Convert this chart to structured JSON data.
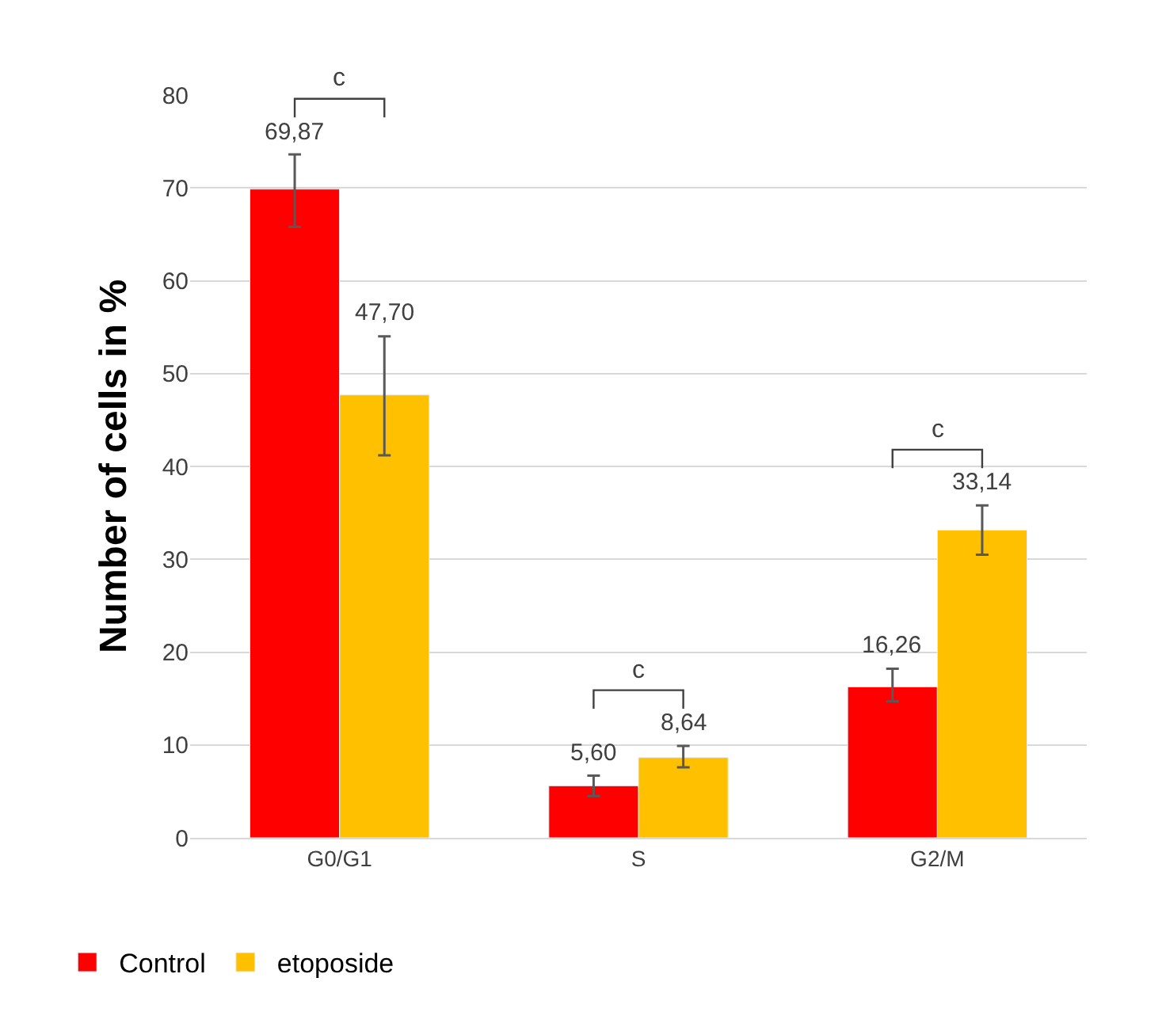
{
  "chart_data": {
    "type": "bar",
    "ylabel": "Number of cells in %",
    "categories": [
      "G0/G1",
      "S",
      "G2/M"
    ],
    "series": [
      {
        "name": "Control",
        "color": "#ff0000",
        "values": [
          69.87,
          5.6,
          16.26
        ],
        "errors": [
          [
            65.8,
            73.6
          ],
          [
            4.5,
            6.7
          ],
          [
            14.7,
            18.2
          ]
        ],
        "value_labels": [
          "69,87",
          "5,60",
          "16,26"
        ]
      },
      {
        "name": "etoposide",
        "color": "#ffc000",
        "values": [
          47.7,
          8.64,
          33.14
        ],
        "errors": [
          [
            41.2,
            54.0
          ],
          [
            7.6,
            9.9
          ],
          [
            30.5,
            35.8
          ]
        ],
        "value_labels": [
          "47,70",
          "8,64",
          "33,14"
        ]
      }
    ],
    "ylim": [
      0,
      80
    ],
    "yticks": [
      0,
      10,
      20,
      30,
      40,
      50,
      60,
      70,
      80
    ],
    "grid": "y",
    "legend": "bottom left",
    "annotations": [
      "c",
      "c",
      "c"
    ]
  }
}
